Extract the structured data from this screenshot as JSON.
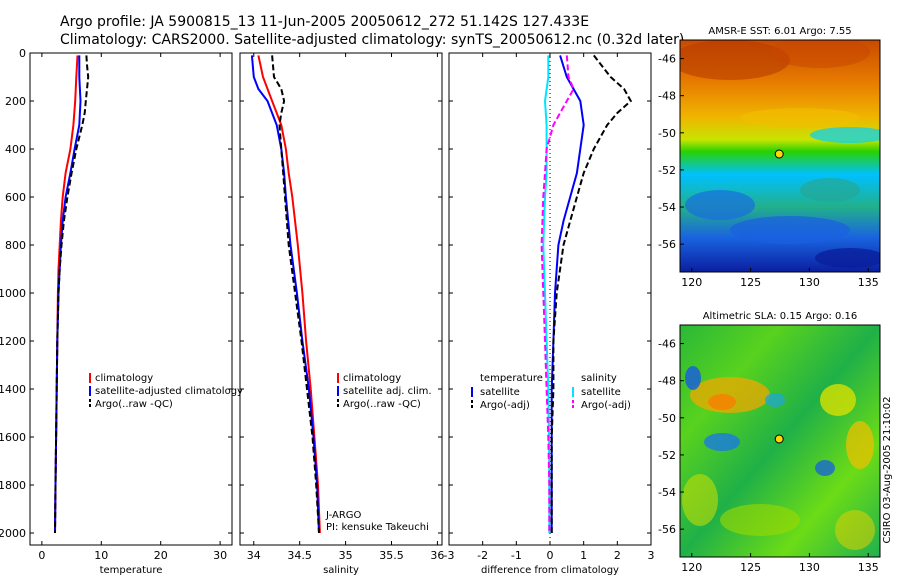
{
  "header": {
    "line1": "Argo profile: JA 5900815_13 11-Jun-2005 20050612_272 51.142S 127.433E",
    "line2": "Climatology: CARS2000. Satellite-adjusted climatology: synTS_20050612.nc (0.32d later)"
  },
  "footer": {
    "credit": "CSIRO 03-Aug-2005 21:10:02"
  },
  "annotation": {
    "line1": "J-ARGO",
    "line2": "PI: kensuke Takeuchi"
  },
  "colors": {
    "climatology": "#ff0000",
    "satellite": "#0000ff",
    "argo": "#000000",
    "salinity_satellite": "#00e5ff",
    "salinity_argo": "#ff00ff"
  },
  "chart_data": [
    {
      "type": "line",
      "panel": "temperature",
      "xlabel": "temperature",
      "ylabel": "",
      "xlim": [
        -2,
        32
      ],
      "ylim": [
        2050,
        0
      ],
      "x_ticks": [
        0,
        10,
        20,
        30
      ],
      "y_ticks": [
        0,
        200,
        400,
        600,
        800,
        1000,
        1200,
        1400,
        1600,
        1800,
        2000
      ],
      "legend": [
        "climatology",
        "satellite-adjusted climatology",
        "Argo(..raw -QC)"
      ],
      "legend_location": "right",
      "series": [
        {
          "name": "climatology",
          "depth": [
            10,
            100,
            200,
            300,
            400,
            500,
            600,
            700,
            800,
            900,
            1000,
            1200,
            1400,
            1600,
            1800,
            2000
          ],
          "values": [
            6.0,
            5.8,
            5.6,
            5.3,
            4.8,
            4.0,
            3.5,
            3.2,
            3.0,
            2.8,
            2.7,
            2.6,
            2.5,
            2.4,
            2.3,
            2.2
          ]
        },
        {
          "name": "satellite-adjusted climatology",
          "depth": [
            10,
            100,
            200,
            300,
            400,
            500,
            600,
            700,
            800,
            900,
            1000,
            1200,
            1400,
            1600,
            1800,
            2000
          ],
          "values": [
            6.3,
            6.3,
            6.5,
            6.3,
            5.5,
            4.8,
            4.0,
            3.5,
            3.2,
            3.0,
            2.8,
            2.6,
            2.5,
            2.4,
            2.3,
            2.2
          ]
        },
        {
          "name": "Argo(..raw -QC)",
          "depth": [
            10,
            50,
            100,
            150,
            200,
            250,
            300,
            350,
            400,
            450,
            500,
            600,
            700,
            800,
            900,
            1000,
            1200,
            1400,
            1600,
            1800,
            2000
          ],
          "values": [
            7.5,
            7.6,
            7.8,
            7.6,
            7.4,
            7.2,
            6.8,
            6.3,
            5.8,
            5.4,
            5.0,
            4.3,
            3.7,
            3.3,
            3.0,
            2.8,
            2.6,
            2.5,
            2.4,
            2.3,
            2.2
          ]
        }
      ]
    },
    {
      "type": "line",
      "panel": "salinity",
      "xlabel": "salinity",
      "ylabel": "",
      "xlim": [
        33.85,
        36.05
      ],
      "ylim": [
        2050,
        0
      ],
      "x_ticks": [
        34,
        34.5,
        35,
        35.5,
        36
      ],
      "legend": [
        "climatology",
        "satellite adj. clim.",
        "Argo(..raw -QC)"
      ],
      "legend_location": "right",
      "series": [
        {
          "name": "climatology",
          "depth": [
            10,
            100,
            200,
            300,
            400,
            500,
            600,
            800,
            1000,
            1200,
            1400,
            1600,
            1800,
            2000
          ],
          "values": [
            34.05,
            34.1,
            34.2,
            34.3,
            34.35,
            34.38,
            34.42,
            34.48,
            34.53,
            34.57,
            34.62,
            34.66,
            34.7,
            34.72
          ]
        },
        {
          "name": "satellite adj. clim.",
          "depth": [
            10,
            100,
            150,
            200,
            300,
            400,
            500,
            600,
            800,
            1000,
            1200,
            1400,
            1600,
            1800,
            2000
          ],
          "values": [
            33.98,
            34.0,
            34.05,
            34.15,
            34.25,
            34.3,
            34.33,
            34.35,
            34.4,
            34.47,
            34.53,
            34.6,
            34.65,
            34.69,
            34.71
          ]
        },
        {
          "name": "Argo(..raw -QC)",
          "depth": [
            10,
            100,
            150,
            200,
            250,
            300,
            400,
            500,
            600,
            800,
            1000,
            1200,
            1400,
            1600,
            1800,
            2000
          ],
          "values": [
            34.2,
            34.22,
            34.3,
            34.33,
            34.3,
            34.28,
            34.3,
            34.32,
            34.34,
            34.38,
            34.45,
            34.52,
            34.58,
            34.64,
            34.68,
            34.71
          ]
        }
      ]
    },
    {
      "type": "line",
      "panel": "difference",
      "xlabel": "difference from climatology",
      "ylabel": "",
      "xlim": [
        -3,
        3
      ],
      "ylim": [
        2050,
        0
      ],
      "x_ticks": [
        -3,
        -2,
        -1,
        0,
        1,
        2,
        3
      ],
      "legend_groups": [
        {
          "title": "temperature",
          "items": [
            "satellite",
            "Argo(-adj)"
          ]
        },
        {
          "title": "salinity",
          "items": [
            "satellite",
            "Argo(-adj)"
          ]
        }
      ],
      "series": [
        {
          "name": "temperature satellite",
          "depth": [
            10,
            100,
            200,
            300,
            400,
            500,
            600,
            700,
            800,
            1000,
            1200,
            1400,
            1600,
            1800,
            2000
          ],
          "values": [
            0.3,
            0.5,
            0.9,
            1.0,
            0.9,
            0.8,
            0.6,
            0.4,
            0.25,
            0.15,
            0.1,
            0.05,
            0.05,
            0.05,
            0.05
          ]
        },
        {
          "name": "temperature Argo(-adj)",
          "depth": [
            10,
            100,
            150,
            200,
            250,
            300,
            400,
            500,
            600,
            700,
            800,
            1000,
            1200,
            1400,
            1600,
            1800,
            2000
          ],
          "values": [
            1.3,
            1.8,
            2.2,
            2.4,
            2.0,
            1.7,
            1.3,
            1.0,
            0.8,
            0.6,
            0.4,
            0.2,
            0.1,
            0.1,
            0.05,
            0.05,
            0.05
          ]
        },
        {
          "name": "salinity satellite",
          "depth": [
            10,
            100,
            200,
            300,
            400,
            500,
            600,
            800,
            1000,
            1200,
            1400,
            1600,
            1800,
            2000
          ],
          "values": [
            -0.05,
            -0.05,
            -0.15,
            -0.1,
            -0.1,
            -0.1,
            -0.15,
            -0.2,
            -0.15,
            -0.1,
            -0.05,
            -0.03,
            -0.02,
            -0.02
          ]
        },
        {
          "name": "salinity Argo(-adj)",
          "depth": [
            10,
            100,
            150,
            200,
            250,
            300,
            400,
            500,
            600,
            800,
            1000,
            1200,
            1400,
            1600,
            1800,
            2000
          ],
          "values": [
            0.5,
            0.55,
            0.7,
            0.5,
            0.3,
            0.1,
            -0.1,
            -0.15,
            -0.2,
            -0.25,
            -0.2,
            -0.15,
            -0.1,
            -0.05,
            -0.02,
            -0.02
          ]
        }
      ]
    },
    {
      "type": "heatmap",
      "panel": "sst_map",
      "title": "AMSR-E SST: 6.01 Argo: 7.55",
      "xlim": [
        119,
        136
      ],
      "ylim": [
        -57.5,
        -45
      ],
      "x_ticks": [
        120,
        125,
        130,
        135
      ],
      "y_ticks": [
        -46,
        -48,
        -50,
        -52,
        -54,
        -56
      ],
      "marker": {
        "lon": 127.433,
        "lat": -51.142
      }
    },
    {
      "type": "heatmap",
      "panel": "sla_map",
      "title": "Altimetric SLA: 0.15 Argo: 0.16",
      "xlim": [
        119,
        136
      ],
      "ylim": [
        -57.5,
        -45
      ],
      "x_ticks": [
        120,
        125,
        130,
        135
      ],
      "y_ticks": [
        -46,
        -48,
        -50,
        -52,
        -54,
        -56
      ],
      "marker": {
        "lon": 127.433,
        "lat": -51.142
      }
    }
  ]
}
